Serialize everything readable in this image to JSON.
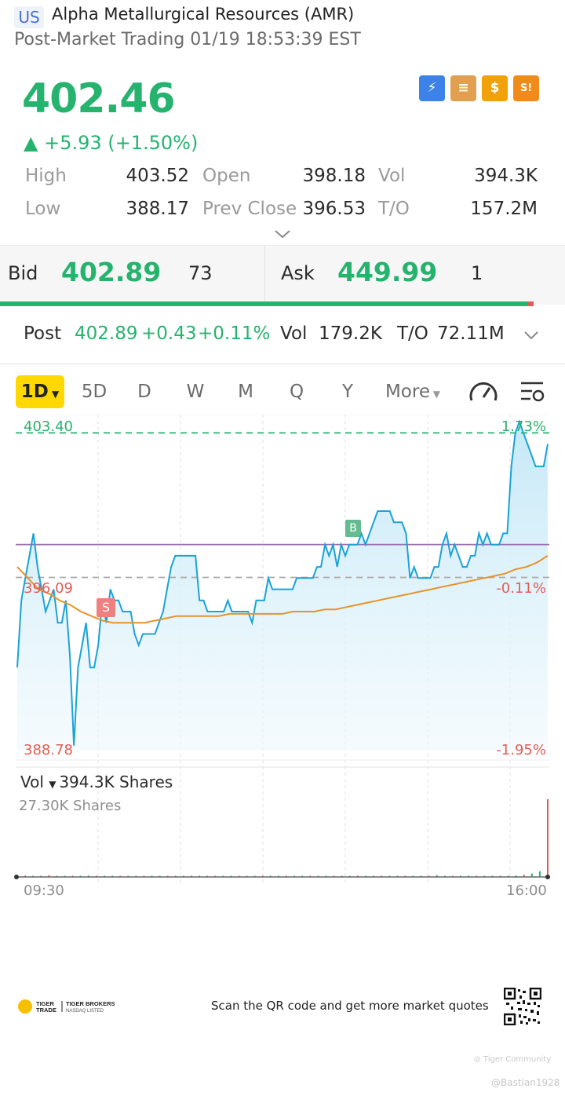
{
  "header": {
    "market": "US",
    "name": "Alpha Metallurgical Resources (AMR)",
    "status": "Post-Market Trading 01/19 18:53:39 EST"
  },
  "quote": {
    "price": "402.46",
    "change": "▲ +5.93 (+1.50%)",
    "high_label": "High",
    "high": "403.52",
    "low_label": "Low",
    "low": "388.17",
    "open_label": "Open",
    "open": "398.18",
    "prev_close_label": "Prev Close",
    "prev_close": "396.53",
    "vol_label": "Vol",
    "vol": "394.3K",
    "to_label": "T/O",
    "to": "157.2M"
  },
  "features": [
    {
      "icon": "lightning-level1-icon",
      "glyph": "⚡"
    },
    {
      "icon": "stack-a-icon",
      "glyph": "≡"
    },
    {
      "icon": "dollar-icon",
      "glyph": "$"
    },
    {
      "icon": "short-interest-icon",
      "glyph": "S!"
    }
  ],
  "bidask": {
    "bid_label": "Bid",
    "bid_price": "402.89",
    "bid_size": "73",
    "ask_label": "Ask",
    "ask_price": "449.99",
    "ask_size": "1",
    "bid_ratio": 0.933
  },
  "post": {
    "label": "Post",
    "price": "402.89",
    "change": "+0.43",
    "pct": "+0.11%",
    "vol_label": "Vol",
    "vol": "179.2K",
    "to_label": "T/O",
    "to": "72.11M"
  },
  "tabs": [
    "1D",
    "5D",
    "D",
    "W",
    "M",
    "Q",
    "Y",
    "More"
  ],
  "chart": {
    "top_price": "403.40",
    "bottom_price": "388.78",
    "mid_price": "396.09",
    "top_pct": "1.73%",
    "mid_pct": "-0.11%",
    "bottom_pct": "-1.95%",
    "markers": {
      "sell": "S",
      "buy": "B"
    },
    "vol_label": "Vol",
    "vol_value": "394.3K Shares",
    "vol_max": "27.30K Shares",
    "time_start": "09:30",
    "time_end": "16:00"
  },
  "chart_data": {
    "type": "line",
    "ylim": [
      388.78,
      403.4
    ],
    "x_range": [
      "09:30",
      "16:00"
    ],
    "series": [
      {
        "color": "#1aa3d8",
        "values": [
          392.5,
          395.5,
          396.5,
          397.5,
          398.5,
          397.0,
          396.0,
          395.0,
          395.5,
          396.0,
          394.5,
          394.5,
          395.5,
          393.0,
          389.0,
          392.5,
          393.5,
          394.5,
          392.5,
          392.5,
          393.5,
          395.5,
          394.5,
          396.0,
          395.5,
          395.5,
          395.0,
          395.0,
          395.0,
          394.0,
          393.5,
          394.0,
          394.0,
          394.0,
          394.0,
          394.5,
          395.0,
          396.0,
          397.0,
          397.5,
          397.5,
          397.5,
          397.5,
          397.5,
          397.5,
          395.5,
          395.5,
          395.0,
          395.0,
          395.0,
          395.0,
          395.0,
          395.5,
          395.0,
          395.0,
          395.0,
          395.0,
          395.0,
          394.5,
          395.5,
          395.5,
          395.5,
          396.5,
          396.0,
          396.0,
          396.0,
          396.0,
          396.0,
          396.0,
          396.5,
          396.5,
          396.5,
          396.5,
          396.5,
          397.0,
          397.0,
          398.0,
          397.5,
          398.0,
          397.0,
          398.0,
          397.5,
          398.0,
          398.0,
          398.0,
          398.5,
          398.0,
          398.5,
          399.0,
          399.5,
          399.5,
          399.5,
          399.5,
          399.0,
          399.0,
          399.0,
          398.5,
          396.5,
          397.0,
          396.5,
          396.5,
          396.5,
          396.5,
          397.0,
          397.0,
          398.0,
          398.5,
          397.5,
          398.0,
          397.5,
          397.0,
          397.0,
          397.5,
          397.5,
          398.5,
          398.0,
          398.5,
          398.0,
          398.0,
          398.0,
          398.5,
          398.5,
          401.5,
          403.0,
          403.5,
          403.0,
          402.5,
          402.0,
          401.5,
          401.5,
          401.5,
          402.5
        ]
      },
      {
        "color": "#e8922a",
        "values": [
          397.0,
          396.5,
          396.0,
          395.8,
          395.5,
          395.3,
          395.0,
          394.8,
          394.6,
          394.5,
          394.5,
          394.5,
          394.5,
          394.6,
          394.7,
          394.8,
          394.8,
          394.8,
          394.8,
          394.8,
          394.9,
          394.9,
          394.9,
          394.9,
          394.9,
          394.9,
          395.0,
          395.0,
          395.0,
          395.1,
          395.1,
          395.2,
          395.3,
          395.4,
          395.5,
          395.6,
          395.7,
          395.8,
          395.9,
          396.0,
          396.1,
          396.2,
          396.3,
          396.4,
          396.5,
          396.6,
          396.7,
          396.9,
          397.0,
          397.2,
          397.5
        ]
      }
    ],
    "reference_lines": [
      {
        "name": "day-high",
        "value": 403.0,
        "style": "dashed",
        "color": "#25b36e"
      },
      {
        "name": "vwap-level",
        "value": 398.0,
        "style": "solid",
        "color": "#9b6fb0"
      },
      {
        "name": "prev-close",
        "value": 396.53,
        "style": "dashed",
        "color": "#aaaaaa"
      }
    ],
    "volume": {
      "ymax": 27.3,
      "values": [
        0.3,
        0.5,
        0.4,
        0.2,
        0.6,
        0.3,
        0.4,
        0.2,
        0.3,
        0.5,
        0.2,
        0.3,
        0.2,
        0.4,
        0.3,
        0.2,
        0.3,
        0.2,
        0.2,
        0.3,
        0.2,
        0.2,
        0.3,
        0.2,
        0.2,
        0.2,
        0.3,
        0.2,
        0.2,
        0.2,
        0.3,
        0.2,
        0.2,
        0.4,
        0.2,
        0.2,
        0.3,
        0.2,
        0.2,
        0.2,
        0.3,
        0.2,
        0.2,
        0.5,
        0.2,
        0.2,
        0.3,
        0.2,
        0.2,
        0.4,
        0.2,
        0.3,
        0.2,
        0.6,
        0.3,
        0.2,
        0.2,
        0.3,
        0.2,
        0.4,
        0.2,
        0.3,
        0.2,
        0.5,
        0.8,
        1.2,
        2.0,
        27.3
      ]
    }
  }
}
